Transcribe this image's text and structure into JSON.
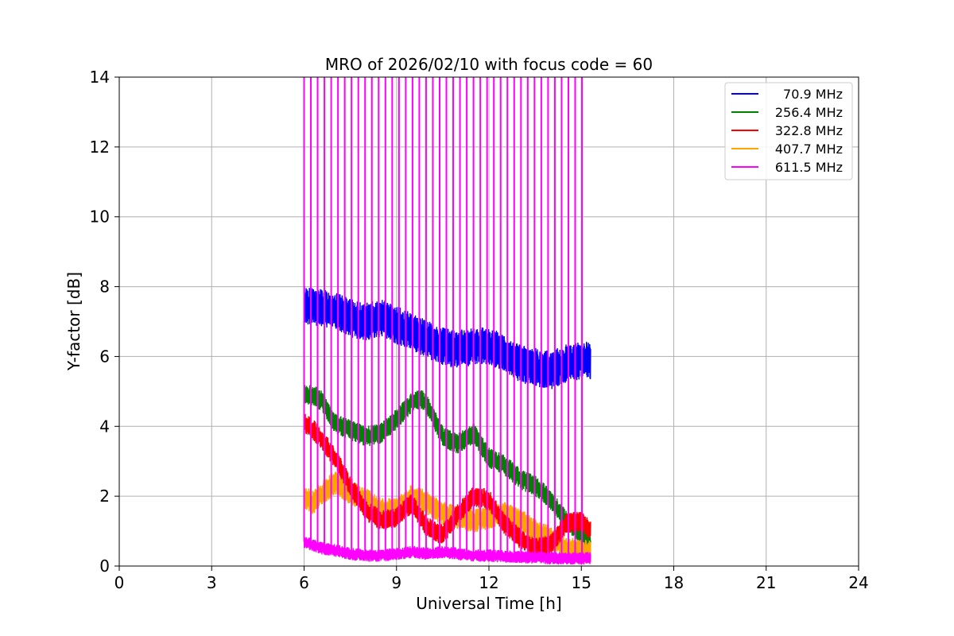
{
  "chart_data": {
    "type": "line",
    "title": "MRO of 2026/02/10 with focus code = 60",
    "xlabel": "Universal Time [h]",
    "ylabel": "Y-factor [dB]",
    "xlim": [
      0,
      24
    ],
    "ylim": [
      0,
      14
    ],
    "xticks": [
      0,
      3,
      6,
      9,
      12,
      15,
      18,
      21,
      24
    ],
    "yticks": [
      0,
      2,
      4,
      6,
      8,
      10,
      12,
      14
    ],
    "grid": true,
    "legend_position": "top-right",
    "spike_times": [
      6.0,
      6.22,
      6.44,
      6.66,
      6.88,
      7.1,
      7.32,
      7.54,
      7.76,
      7.98,
      8.2,
      8.42,
      8.64,
      8.86,
      9.08,
      9.3,
      9.52,
      9.74,
      9.96,
      10.18,
      10.4,
      10.62,
      10.84,
      11.06,
      11.28,
      11.5,
      11.72,
      11.94,
      12.16,
      12.38,
      12.6,
      12.82,
      13.04,
      13.26,
      13.48,
      13.7,
      13.92,
      14.14,
      14.36,
      14.58,
      14.8,
      15.02
    ],
    "series": [
      {
        "name": "70.9 MHz",
        "color": "#0000ff",
        "band": 0.55,
        "x": [
          6.0,
          6.3,
          6.6,
          7.0,
          7.5,
          8.0,
          8.5,
          9.0,
          9.5,
          10.0,
          10.5,
          11.0,
          11.5,
          12.0,
          12.5,
          13.0,
          13.5,
          14.0,
          14.5,
          15.0,
          15.3
        ],
        "y": [
          7.5,
          7.4,
          7.4,
          7.3,
          7.1,
          7.0,
          7.1,
          6.9,
          6.7,
          6.5,
          6.3,
          6.2,
          6.3,
          6.3,
          6.1,
          5.8,
          5.7,
          5.6,
          5.8,
          5.9,
          5.9
        ]
      },
      {
        "name": "256.4 MHz",
        "color": "#008000",
        "band": 0.3,
        "x": [
          6.0,
          6.3,
          6.6,
          7.0,
          7.5,
          8.0,
          8.5,
          9.0,
          9.5,
          9.8,
          10.0,
          10.5,
          11.0,
          11.5,
          12.0,
          12.5,
          13.0,
          13.5,
          14.0,
          14.5,
          15.0,
          15.3
        ],
        "y": [
          4.9,
          4.9,
          4.7,
          4.1,
          3.9,
          3.7,
          3.8,
          4.2,
          4.7,
          4.8,
          4.6,
          3.7,
          3.5,
          3.8,
          3.1,
          2.9,
          2.5,
          2.3,
          1.9,
          1.3,
          0.9,
          0.6
        ]
      },
      {
        "name": "322.8 MHz",
        "color": "#ff0000",
        "band": 0.3,
        "x": [
          6.0,
          6.3,
          6.6,
          7.0,
          7.5,
          8.0,
          8.5,
          9.0,
          9.5,
          10.0,
          10.5,
          11.0,
          11.5,
          12.0,
          12.5,
          13.0,
          13.5,
          14.0,
          14.5,
          15.0,
          15.3
        ],
        "y": [
          4.1,
          3.9,
          3.6,
          3.1,
          2.3,
          1.6,
          1.3,
          1.4,
          1.8,
          1.1,
          0.9,
          1.5,
          2.0,
          1.9,
          1.2,
          0.8,
          0.5,
          0.6,
          1.2,
          1.3,
          1.0
        ]
      },
      {
        "name": "407.7 MHz",
        "color": "#ffa500",
        "band": 0.35,
        "x": [
          6.0,
          6.3,
          6.6,
          7.0,
          7.5,
          8.0,
          8.5,
          9.0,
          9.5,
          10.0,
          10.5,
          11.0,
          11.5,
          12.0,
          12.5,
          13.0,
          13.5,
          14.0,
          14.5,
          15.0,
          15.3
        ],
        "y": [
          2.0,
          1.8,
          2.1,
          2.4,
          2.1,
          1.9,
          1.6,
          1.6,
          2.0,
          1.8,
          1.5,
          1.4,
          1.3,
          1.4,
          1.5,
          1.3,
          1.0,
          0.8,
          0.5,
          0.4,
          0.4
        ]
      },
      {
        "name": "611.5 MHz",
        "color": "#ff00ff",
        "band": 0.18,
        "x": [
          6.0,
          6.3,
          6.6,
          7.0,
          7.5,
          8.0,
          8.5,
          9.0,
          9.5,
          10.0,
          10.5,
          11.0,
          11.5,
          12.0,
          12.5,
          13.0,
          13.5,
          14.0,
          14.5,
          15.0,
          15.3
        ],
        "y": [
          0.7,
          0.6,
          0.5,
          0.45,
          0.35,
          0.3,
          0.3,
          0.35,
          0.4,
          0.35,
          0.4,
          0.35,
          0.3,
          0.3,
          0.28,
          0.25,
          0.25,
          0.22,
          0.22,
          0.22,
          0.22
        ]
      }
    ]
  }
}
